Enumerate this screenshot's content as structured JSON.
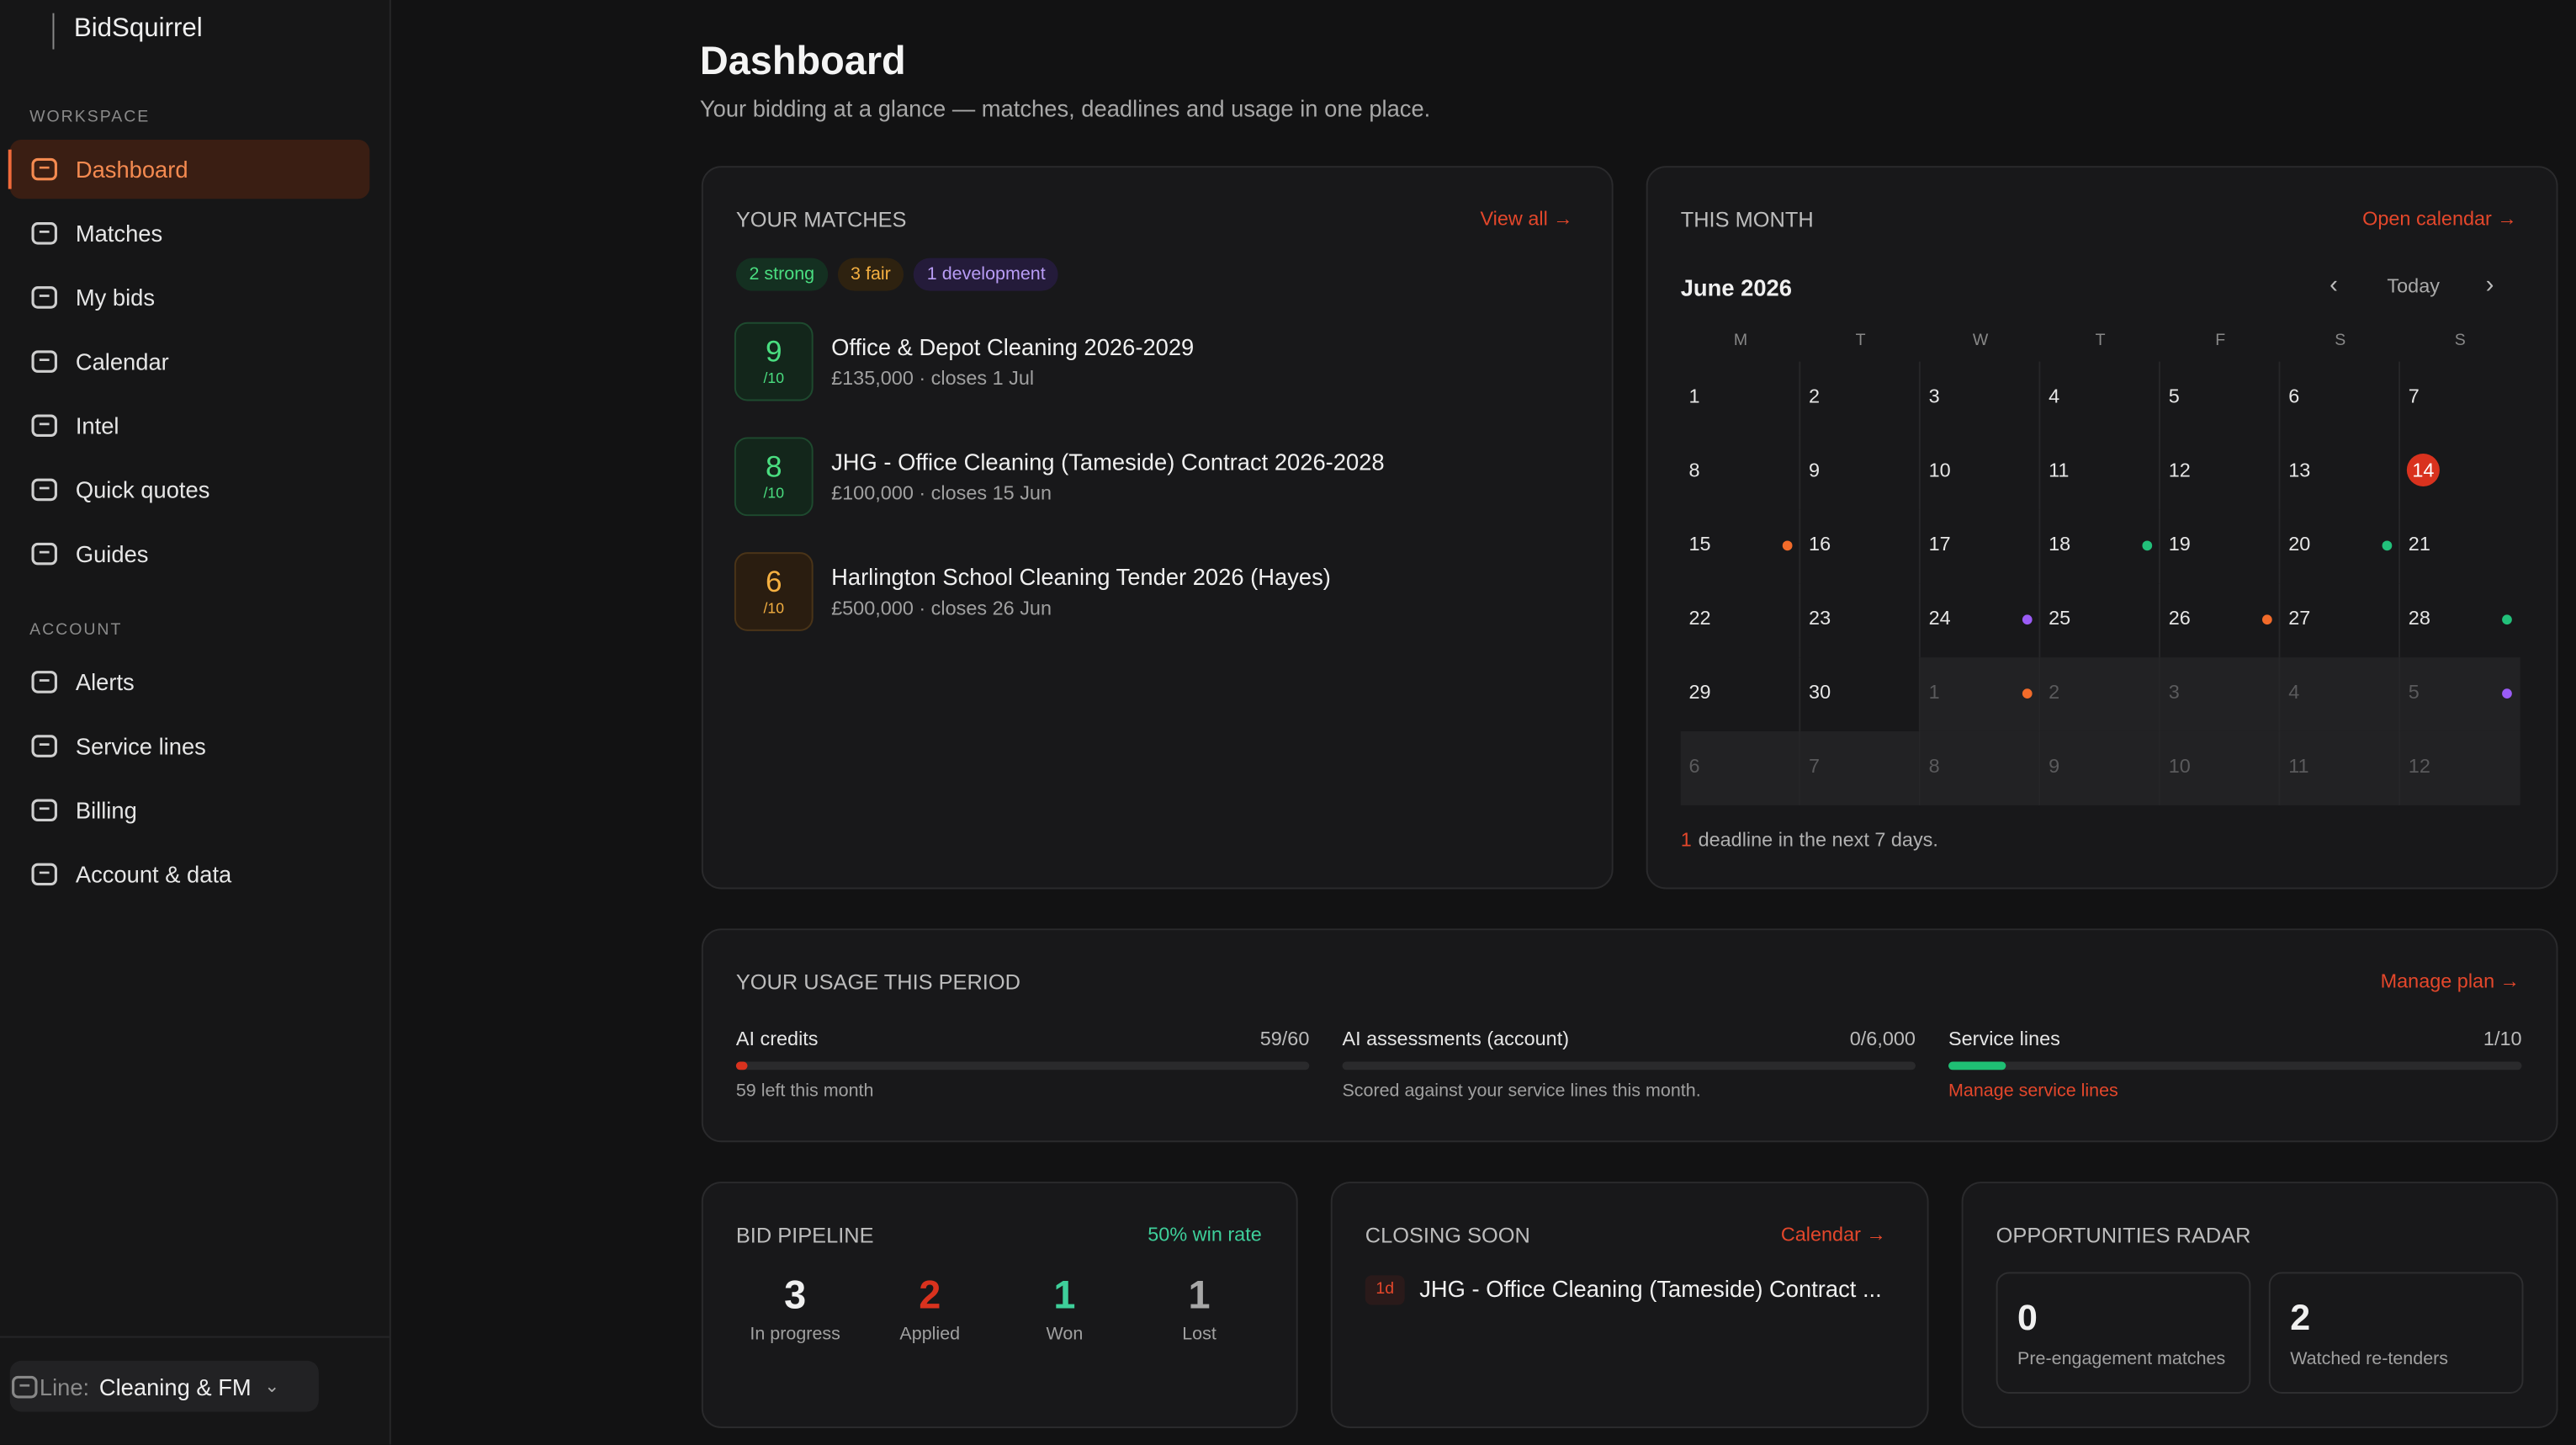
{
  "sidebar": {
    "brand": "BidSquirrel",
    "sections": [
      {
        "heading": "WORKSPACE",
        "items": [
          "Dashboard",
          "Matches",
          "My bids",
          "Calendar",
          "Intel",
          "Quick quotes",
          "Guides"
        ]
      },
      {
        "heading": "ACCOUNT",
        "items": [
          "Alerts",
          "Service lines",
          "Billing",
          "Account & data"
        ]
      }
    ],
    "line_label": "Line:",
    "line_value": "Cleaning & FM"
  },
  "header": {
    "title": "Dashboard",
    "subtitle": "Your bidding at a glance — matches, deadlines and usage in one place."
  },
  "matches": {
    "title": "YOUR MATCHES",
    "link": "View all →",
    "tags": [
      "2 strong",
      "3 fair",
      "1 development"
    ],
    "items": [
      {
        "score": 9,
        "out_of": "/10",
        "title": "Office & Depot Cleaning 2026-2029",
        "meta": "£135,000 · closes 1 Jul"
      },
      {
        "score": 8,
        "out_of": "/10",
        "title": "JHG - Office Cleaning (Tameside) Contract 2026-2028",
        "meta": "£100,000 · closes 15 Jun"
      },
      {
        "score": 6,
        "out_of": "/10",
        "title": "Harlington School Cleaning Tender 2026 (Hayes)",
        "meta": "£500,000 · closes 26 Jun"
      }
    ]
  },
  "calendar": {
    "title": "THIS MONTH",
    "link": "Open calendar →",
    "month": "June 2026",
    "today": "Today",
    "weekdays": [
      "M",
      "T",
      "W",
      "T",
      "F",
      "S",
      "S"
    ],
    "weeks": [
      [
        1,
        2,
        3,
        4,
        5,
        6,
        7
      ],
      [
        8,
        9,
        10,
        11,
        12,
        13,
        14
      ],
      [
        15,
        16,
        17,
        18,
        19,
        20,
        21
      ],
      [
        22,
        23,
        24,
        25,
        26,
        27,
        28
      ],
      [
        29,
        30,
        1,
        2,
        3,
        4,
        5
      ],
      [
        6,
        7,
        8,
        9,
        10,
        11,
        12
      ]
    ],
    "footer_count": 1,
    "footer_text": "deadline in the next 7 days."
  },
  "usage": {
    "title": "YOUR USAGE THIS PERIOD",
    "link": "Manage plan →",
    "items": [
      {
        "label": "AI credits",
        "value": "59/60",
        "note": "59 left this month"
      },
      {
        "label": "AI assessments (account)",
        "value": "0/6,000",
        "note": "Scored against your service lines this month."
      },
      {
        "label": "Service lines",
        "value": "1/10",
        "note": "Manage service lines"
      }
    ]
  },
  "pipeline": {
    "title": "BID PIPELINE",
    "link": "50% win rate",
    "stats": [
      {
        "value": 3,
        "label": "In progress"
      },
      {
        "value": 2,
        "label": "Applied"
      },
      {
        "value": 1,
        "label": "Won"
      },
      {
        "value": 1,
        "label": "Lost"
      }
    ]
  },
  "closing": {
    "title": "CLOSING SOON",
    "link": "Calendar →",
    "badge": "1d",
    "item": "JHG - Office Cleaning (Tameside) Contract ..."
  },
  "radar": {
    "title": "OPPORTUNITIES RADAR",
    "stats": [
      {
        "value": 0,
        "label": "Pre-engagement matches"
      },
      {
        "value": 2,
        "label": "Watched re-tenders"
      }
    ]
  }
}
